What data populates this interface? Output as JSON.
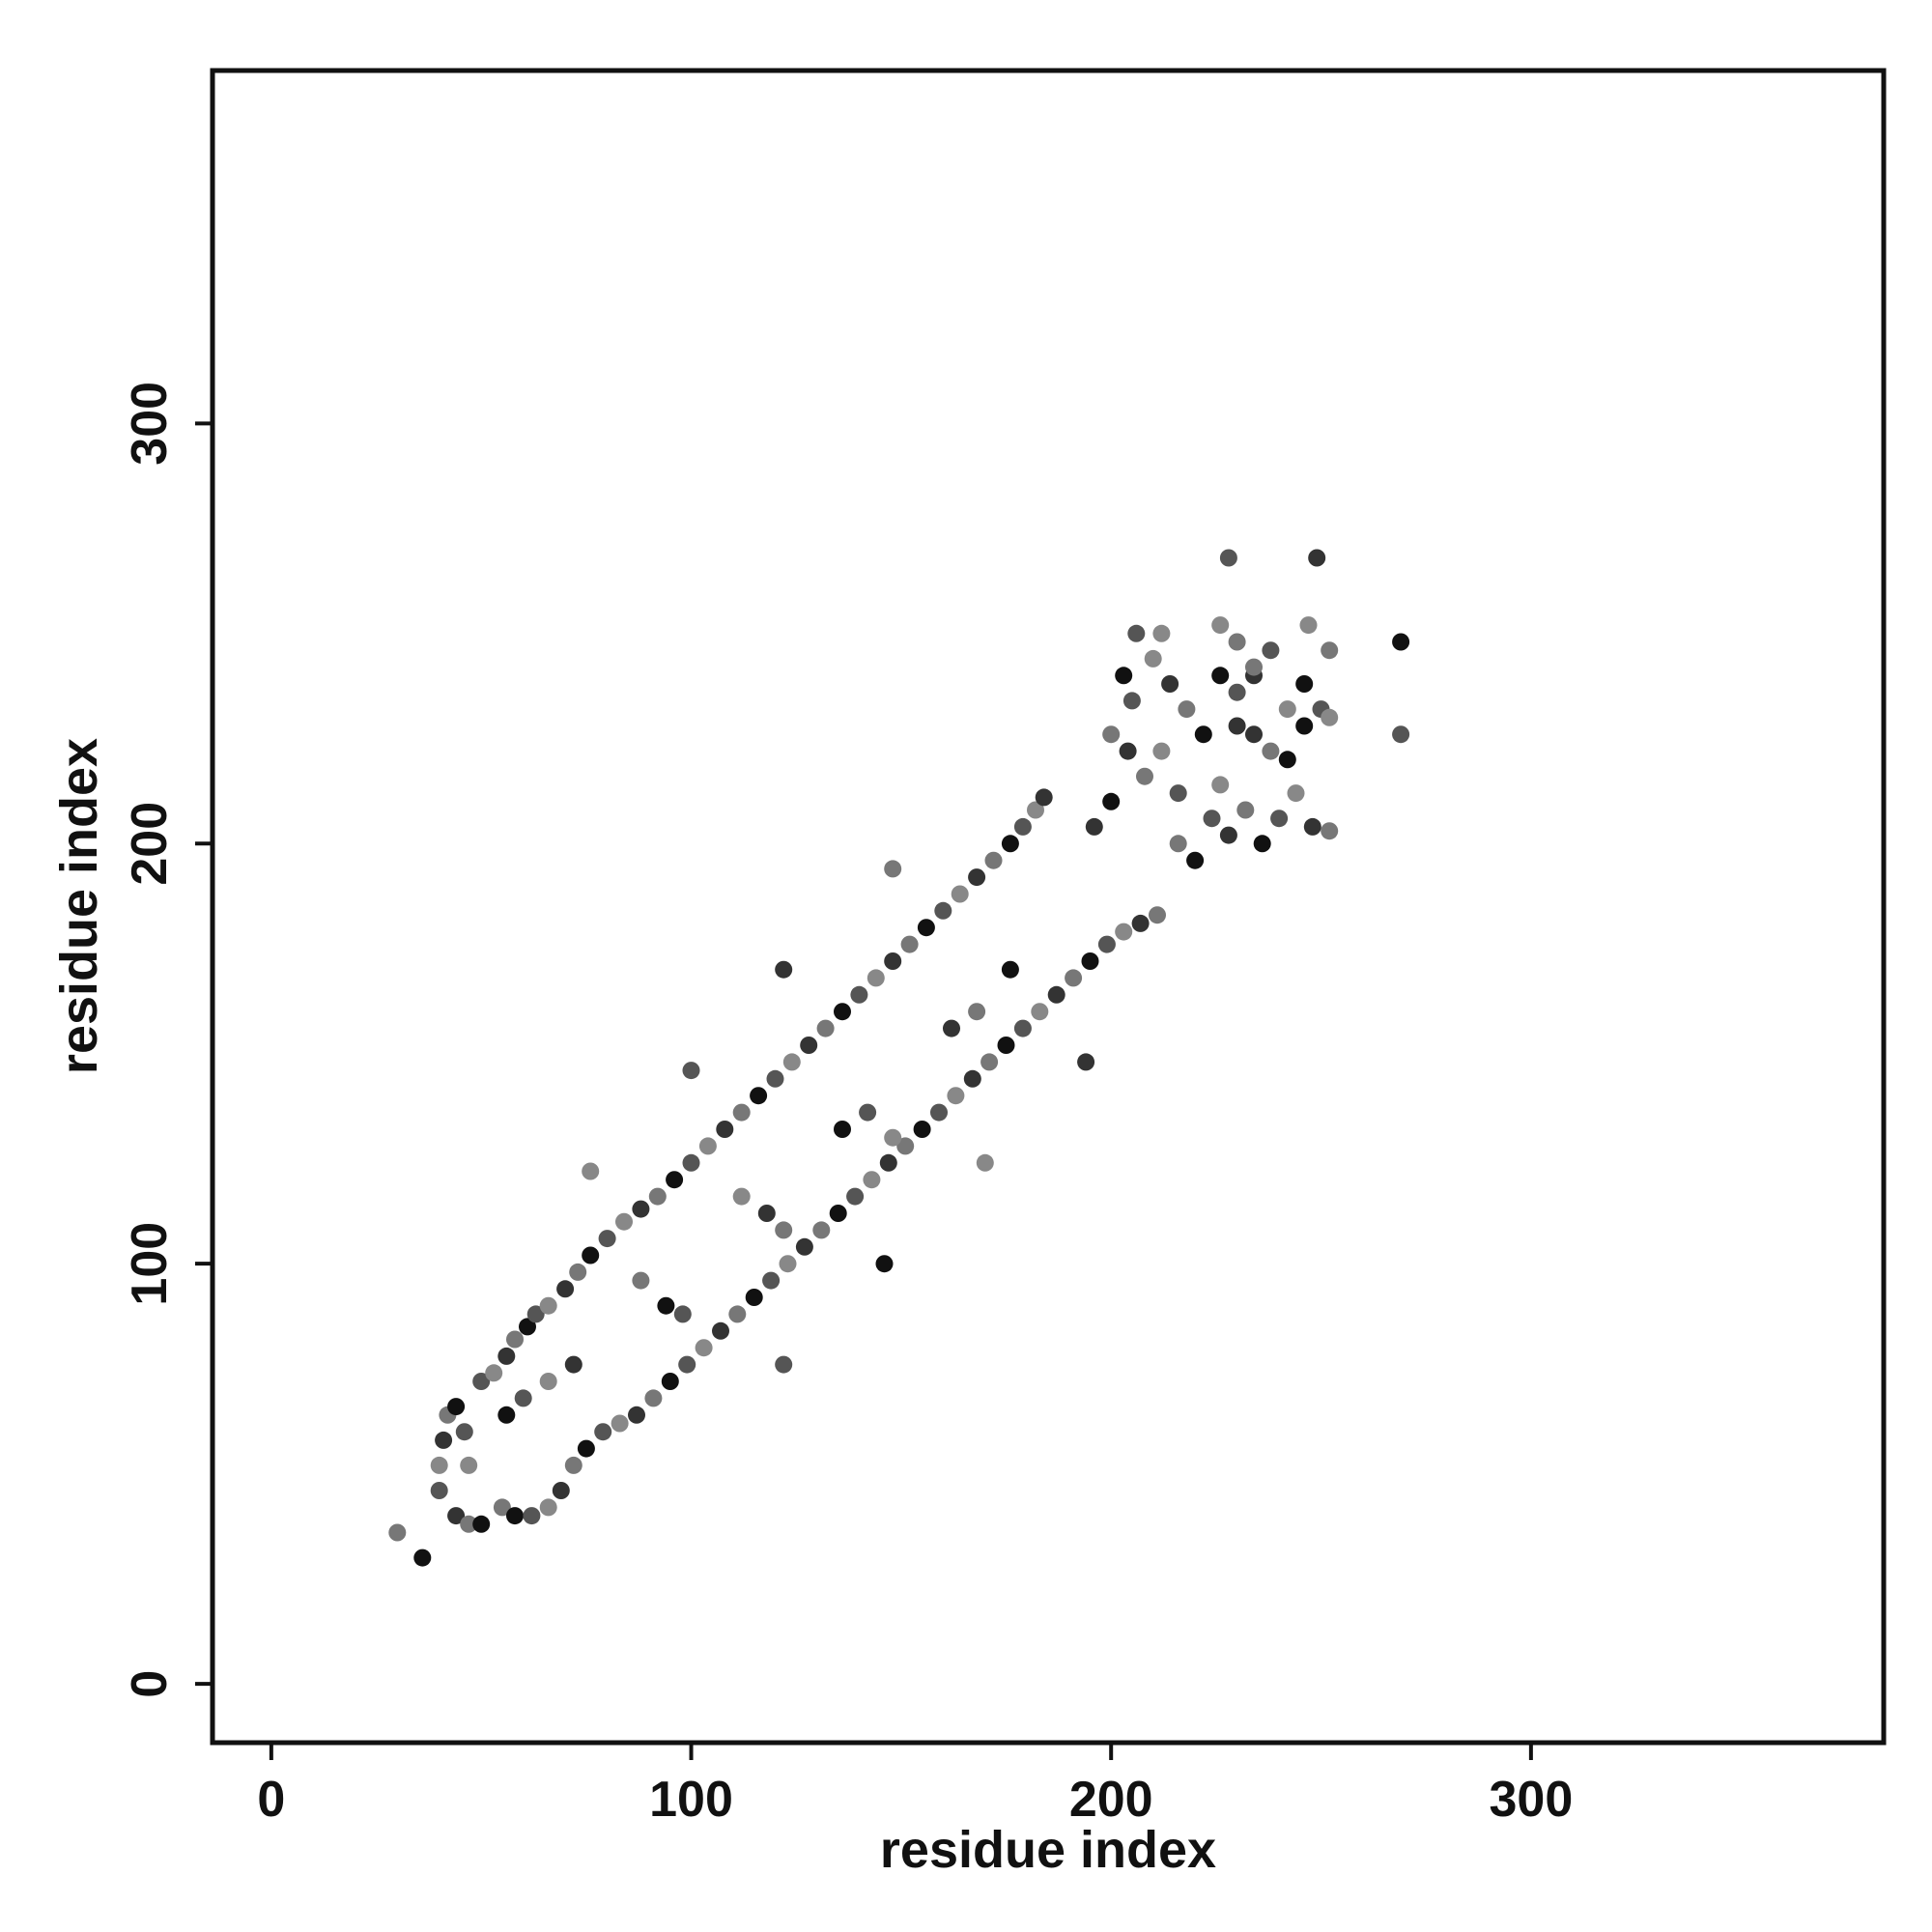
{
  "chart_data": {
    "type": "scatter",
    "title": "",
    "xlabel": "residue index",
    "ylabel": "residue index",
    "xlim": [
      -14,
      384
    ],
    "ylim": [
      -14,
      384
    ],
    "x_ticks": [
      0,
      100,
      200,
      300
    ],
    "y_ticks": [
      0,
      100,
      200,
      300
    ],
    "grid": false,
    "legend": "none",
    "point_colors": [
      "#111111",
      "#333333",
      "#555555",
      "#777777",
      "#888888"
    ],
    "series": [
      {
        "values": [
          [
            30,
            36
          ],
          [
            36,
            30
          ],
          [
            40,
            46
          ],
          [
            40,
            52
          ],
          [
            41,
            58
          ],
          [
            42,
            64
          ],
          [
            44,
            66
          ],
          [
            46,
            60
          ],
          [
            47,
            52
          ],
          [
            44,
            40
          ],
          [
            47,
            38
          ],
          [
            50,
            38
          ],
          [
            50,
            72
          ],
          [
            53,
            74
          ],
          [
            56,
            78
          ],
          [
            58,
            82
          ],
          [
            61,
            85
          ],
          [
            63,
            88
          ],
          [
            66,
            90
          ],
          [
            70,
            94
          ],
          [
            73,
            98
          ],
          [
            76,
            102
          ],
          [
            80,
            106
          ],
          [
            84,
            110
          ],
          [
            88,
            113
          ],
          [
            92,
            116
          ],
          [
            96,
            120
          ],
          [
            100,
            124
          ],
          [
            104,
            128
          ],
          [
            108,
            132
          ],
          [
            112,
            136
          ],
          [
            116,
            140
          ],
          [
            120,
            144
          ],
          [
            124,
            148
          ],
          [
            128,
            152
          ],
          [
            132,
            156
          ],
          [
            136,
            160
          ],
          [
            140,
            164
          ],
          [
            144,
            168
          ],
          [
            148,
            172
          ],
          [
            152,
            176
          ],
          [
            156,
            180
          ],
          [
            160,
            184
          ],
          [
            164,
            188
          ],
          [
            168,
            192
          ],
          [
            172,
            196
          ],
          [
            176,
            200
          ],
          [
            179,
            204
          ],
          [
            182,
            208
          ],
          [
            184,
            211
          ],
          [
            55,
            42
          ],
          [
            58,
            40
          ],
          [
            62,
            40
          ],
          [
            66,
            42
          ],
          [
            69,
            46
          ],
          [
            72,
            52
          ],
          [
            75,
            56
          ],
          [
            79,
            60
          ],
          [
            83,
            62
          ],
          [
            87,
            64
          ],
          [
            91,
            68
          ],
          [
            95,
            72
          ],
          [
            99,
            76
          ],
          [
            103,
            80
          ],
          [
            107,
            84
          ],
          [
            111,
            88
          ],
          [
            115,
            92
          ],
          [
            119,
            96
          ],
          [
            123,
            100
          ],
          [
            127,
            104
          ],
          [
            131,
            108
          ],
          [
            135,
            112
          ],
          [
            139,
            116
          ],
          [
            143,
            120
          ],
          [
            147,
            124
          ],
          [
            151,
            128
          ],
          [
            155,
            132
          ],
          [
            159,
            136
          ],
          [
            163,
            140
          ],
          [
            167,
            144
          ],
          [
            171,
            148
          ],
          [
            175,
            152
          ],
          [
            179,
            156
          ],
          [
            183,
            160
          ],
          [
            187,
            164
          ],
          [
            191,
            168
          ],
          [
            195,
            172
          ],
          [
            199,
            176
          ],
          [
            203,
            179
          ],
          [
            207,
            181
          ],
          [
            211,
            183
          ],
          [
            56,
            64
          ],
          [
            60,
            68
          ],
          [
            66,
            72
          ],
          [
            72,
            76
          ],
          [
            88,
            96
          ],
          [
            94,
            90
          ],
          [
            98,
            88
          ],
          [
            112,
            116
          ],
          [
            118,
            112
          ],
          [
            122,
            108
          ],
          [
            136,
            132
          ],
          [
            142,
            136
          ],
          [
            148,
            130
          ],
          [
            162,
            156
          ],
          [
            168,
            160
          ],
          [
            176,
            170
          ],
          [
            100,
            146
          ],
          [
            76,
            122
          ],
          [
            122,
            170
          ],
          [
            148,
            194
          ],
          [
            146,
            100
          ],
          [
            122,
            76
          ],
          [
            170,
            124
          ],
          [
            194,
            148
          ],
          [
            200,
            226
          ],
          [
            203,
            240
          ],
          [
            206,
            250
          ],
          [
            210,
            244
          ],
          [
            214,
            238
          ],
          [
            218,
            232
          ],
          [
            222,
            226
          ],
          [
            205,
            234
          ],
          [
            212,
            222
          ],
          [
            196,
            204
          ],
          [
            216,
            200
          ],
          [
            220,
            196
          ],
          [
            224,
            206
          ],
          [
            226,
            214
          ],
          [
            228,
            202
          ],
          [
            232,
            208
          ],
          [
            236,
            200
          ],
          [
            240,
            206
          ],
          [
            244,
            212
          ],
          [
            248,
            204
          ],
          [
            252,
            203
          ],
          [
            246,
            228
          ],
          [
            250,
            232
          ],
          [
            252,
            230
          ],
          [
            234,
            240
          ],
          [
            230,
            248
          ],
          [
            226,
            240
          ],
          [
            230,
            236
          ],
          [
            226,
            252
          ],
          [
            234,
            226
          ],
          [
            238,
            222
          ],
          [
            242,
            220
          ],
          [
            228,
            268
          ],
          [
            247,
            252
          ],
          [
            249,
            268
          ],
          [
            252,
            246
          ],
          [
            269,
            248
          ],
          [
            269,
            226
          ],
          [
            242,
            232
          ],
          [
            230,
            228
          ],
          [
            234,
            242
          ],
          [
            246,
            238
          ],
          [
            238,
            246
          ],
          [
            212,
            250
          ],
          [
            204,
            222
          ],
          [
            208,
            216
          ],
          [
            200,
            210
          ],
          [
            216,
            212
          ]
        ]
      }
    ]
  }
}
